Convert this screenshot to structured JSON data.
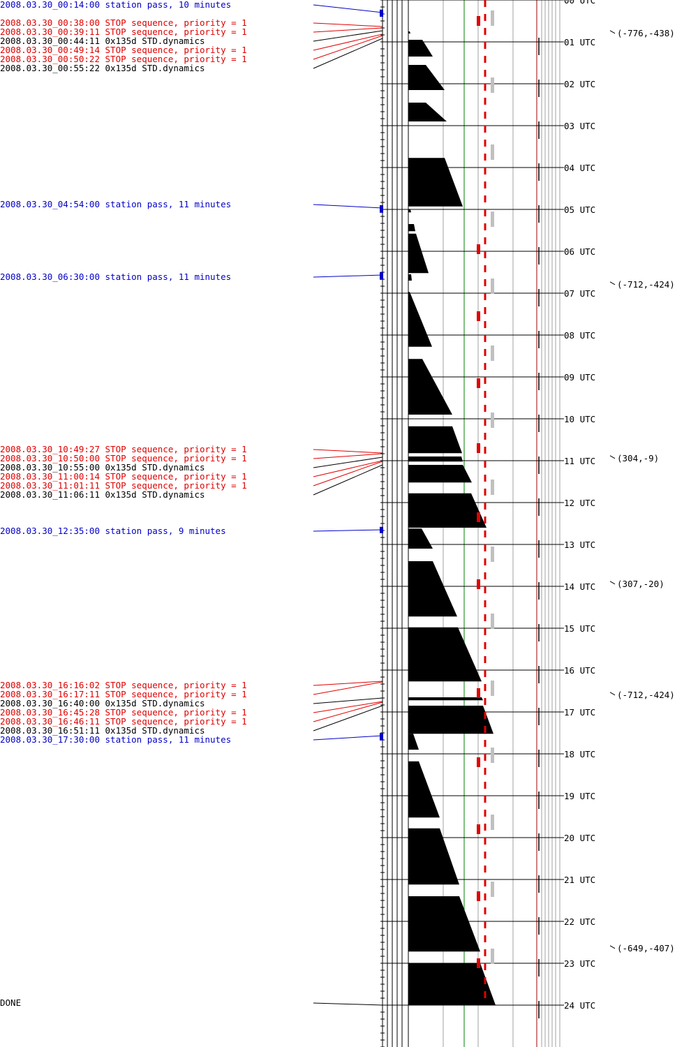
{
  "timeline": {
    "events": [
      {
        "text": "2008.03.30_00:14:00 station pass, 10 minutes",
        "color": "blue"
      },
      {
        "text": "2008.03.30_00:38:00 STOP sequence, priority = 1",
        "color": "red"
      },
      {
        "text": "2008.03.30_00:39:11 STOP sequence, priority = 1",
        "color": "red"
      },
      {
        "text": "2008.03.30_00:44:11 0x135d STD.dynamics",
        "color": "black"
      },
      {
        "text": "2008.03.30_00:49:14 STOP sequence, priority = 1",
        "color": "red"
      },
      {
        "text": "2008.03.30_00:50:22 STOP sequence, priority = 1",
        "color": "red"
      },
      {
        "text": "2008.03.30_00:55:22 0x135d STD.dynamics",
        "color": "black"
      },
      {
        "text": "2008.03.30_04:54:00 station pass, 11 minutes",
        "color": "blue"
      },
      {
        "text": "2008.03.30_06:30:00 station pass, 11 minutes",
        "color": "blue"
      },
      {
        "text": "2008.03.30_10:49:27 STOP sequence, priority = 1",
        "color": "red"
      },
      {
        "text": "2008.03.30_10:50:00 STOP sequence, priority = 1",
        "color": "red"
      },
      {
        "text": "2008.03.30_10:55:00 0x135d STD.dynamics",
        "color": "black"
      },
      {
        "text": "2008.03.30_11:00:14 STOP sequence, priority = 1",
        "color": "red"
      },
      {
        "text": "2008.03.30_11:01:11 STOP sequence, priority = 1",
        "color": "red"
      },
      {
        "text": "2008.03.30_11:06:11 0x135d STD.dynamics",
        "color": "black"
      },
      {
        "text": "2008.03.30_12:35:00 station pass, 9 minutes",
        "color": "blue"
      },
      {
        "text": "2008.03.30_16:16:02 STOP sequence, priority = 1",
        "color": "red"
      },
      {
        "text": "2008.03.30_16:17:11 STOP sequence, priority = 1",
        "color": "red"
      },
      {
        "text": "2008.03.30_16:40:00 0x135d STD.dynamics",
        "color": "black"
      },
      {
        "text": "2008.03.30_16:45:28 STOP sequence, priority = 1",
        "color": "red"
      },
      {
        "text": "2008.03.30_16:46:11 STOP sequence, priority = 1",
        "color": "red"
      },
      {
        "text": "2008.03.30_16:51:11 0x135d STD.dynamics",
        "color": "black"
      },
      {
        "text": "2008.03.30_17:30:00 station pass, 11 minutes",
        "color": "blue"
      },
      {
        "text": "DONE",
        "color": "black"
      }
    ],
    "hour_labels": [
      "00 UTC",
      "01 UTC",
      "02 UTC",
      "03 UTC",
      "04 UTC",
      "05 UTC",
      "06 UTC",
      "07 UTC",
      "08 UTC",
      "09 UTC",
      "10 UTC",
      "11 UTC",
      "12 UTC",
      "13 UTC",
      "14 UTC",
      "15 UTC",
      "16 UTC",
      "17 UTC",
      "18 UTC",
      "19 UTC",
      "20 UTC",
      "21 UTC",
      "22 UTC",
      "23 UTC",
      "24 UTC"
    ],
    "coordinates": [
      {
        "text": "(-776,-438)",
        "hour": 0.78
      },
      {
        "text": "(-712,-424)",
        "hour": 6.78
      },
      {
        "text": "(304,-9)",
        "hour": 10.93
      },
      {
        "text": "(307,-20)",
        "hour": 13.93
      },
      {
        "text": "(-712,-424)",
        "hour": 16.58
      },
      {
        "text": "(-649,-407)",
        "hour": 22.63
      }
    ],
    "colors": {
      "station_pass": "#0000c8",
      "stop_sequence": "#e00000",
      "dynamics": "#000000",
      "gray_marker": "#c0c0c0",
      "gridline": "#a0a0a0",
      "green_line": "#008000",
      "dark_red_line": "#a00000"
    }
  }
}
